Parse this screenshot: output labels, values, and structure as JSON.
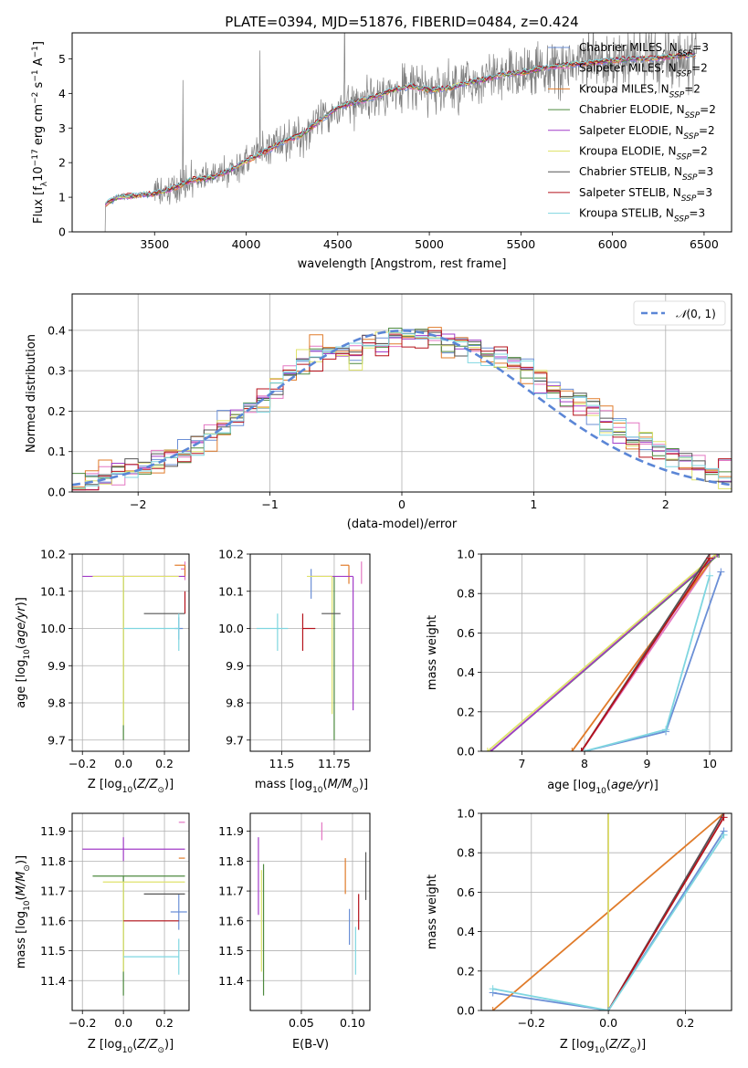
{
  "colors": {
    "Chabrier MILES": "#6b8fd6",
    "Salpeter MILES": "#e377c2",
    "Kroupa MILES": "#e07b2a",
    "Chabrier ELODIE": "#4d8a3f",
    "Salpeter ELODIE": "#a23cc8",
    "Kroupa ELODIE": "#dfe36b",
    "Chabrier STELIB": "#555555",
    "Salpeter STELIB": "#b5121b",
    "Kroupa STELIB": "#7fd6e0"
  },
  "chart_data": [
    {
      "id": "spectrum",
      "type": "line",
      "title": "PLATE=0394, MJD=51876, FIBERID=0484, z=0.424",
      "xlabel": "wavelength [Angstrom, rest frame]",
      "ylabel": "Flux [f_λ 10^-17 erg cm^-2 s^-1 A^-1]",
      "xlim": [
        3050,
        6650
      ],
      "ylim": [
        0,
        5.75
      ],
      "xticks": [
        3500,
        4000,
        4500,
        5000,
        5500,
        6000,
        6500
      ],
      "yticks": [
        0,
        1,
        2,
        3,
        4,
        5
      ],
      "grid": false,
      "legend_position": "top-right",
      "continuum": [
        [
          3230,
          0.0
        ],
        [
          3232,
          0.8
        ],
        [
          3300,
          1.0
        ],
        [
          3400,
          1.05
        ],
        [
          3500,
          1.1
        ],
        [
          3600,
          1.25
        ],
        [
          3700,
          1.5
        ],
        [
          3800,
          1.55
        ],
        [
          3900,
          1.75
        ],
        [
          4000,
          2.05
        ],
        [
          4100,
          2.3
        ],
        [
          4200,
          2.6
        ],
        [
          4300,
          2.8
        ],
        [
          4400,
          3.2
        ],
        [
          4500,
          3.6
        ],
        [
          4600,
          3.75
        ],
        [
          4700,
          3.9
        ],
        [
          4800,
          4.1
        ],
        [
          4900,
          4.2
        ],
        [
          5000,
          4.1
        ],
        [
          5100,
          4.15
        ],
        [
          5200,
          4.3
        ],
        [
          5300,
          4.4
        ],
        [
          5400,
          4.55
        ],
        [
          5500,
          4.6
        ],
        [
          5600,
          4.7
        ],
        [
          5700,
          4.8
        ],
        [
          5800,
          4.85
        ],
        [
          5900,
          4.9
        ],
        [
          6000,
          4.95
        ],
        [
          6100,
          5.0
        ],
        [
          6200,
          5.0
        ],
        [
          6300,
          5.05
        ],
        [
          6400,
          5.1
        ]
      ],
      "series": [
        {
          "name": "Chabrier MILES",
          "label": "Chabrier MILES, N_SSP=3"
        },
        {
          "name": "Salpeter MILES",
          "label": "Salpeter MILES, N_SSP=2"
        },
        {
          "name": "Kroupa MILES",
          "label": "Kroupa MILES, N_SSP=2"
        },
        {
          "name": "Chabrier ELODIE",
          "label": "Chabrier ELODIE, N_SSP=2"
        },
        {
          "name": "Salpeter ELODIE",
          "label": "Salpeter ELODIE, N_SSP=2"
        },
        {
          "name": "Kroupa ELODIE",
          "label": "Kroupa ELODIE, N_SSP=2"
        },
        {
          "name": "Chabrier STELIB",
          "label": "Chabrier STELIB, N_SSP=3"
        },
        {
          "name": "Salpeter STELIB",
          "label": "Salpeter STELIB, N_SSP=3"
        },
        {
          "name": "Kroupa STELIB",
          "label": "Kroupa STELIB, N_SSP=3"
        }
      ]
    },
    {
      "id": "residuals",
      "type": "line",
      "xlabel": "(data-model)/error",
      "ylabel": "Normed distribution",
      "xlim": [
        -2.5,
        2.5
      ],
      "ylim": [
        0,
        0.49
      ],
      "xticks": [
        -2,
        -1,
        0,
        1,
        2
      ],
      "yticks": [
        0.0,
        0.1,
        0.2,
        0.3,
        0.4
      ],
      "grid": true,
      "legend_position": "top-right",
      "legend": "N(0,1)",
      "bin_width": 0.1,
      "hist_center": [
        0.02,
        0.03,
        0.04,
        0.045,
        0.05,
        0.06,
        0.07,
        0.085,
        0.1,
        0.12,
        0.14,
        0.16,
        0.18,
        0.2,
        0.22,
        0.26,
        0.3,
        0.32,
        0.34,
        0.35,
        0.35,
        0.35,
        0.36,
        0.37,
        0.38,
        0.39,
        0.39,
        0.38,
        0.37,
        0.36,
        0.35,
        0.34,
        0.33,
        0.32,
        0.3,
        0.28,
        0.26,
        0.24,
        0.22,
        0.2,
        0.18,
        0.16,
        0.14,
        0.12,
        0.1,
        0.09,
        0.08,
        0.07,
        0.06,
        0.05
      ]
    },
    {
      "id": "age-Z",
      "type": "scatter",
      "xlabel": "Z [log10(Z/Z_sun)]",
      "ylabel": "age [log10(age/yr)]",
      "xlim": [
        -0.25,
        0.32
      ],
      "ylim": [
        9.67,
        10.2
      ],
      "xticks": [
        -0.2,
        0.0,
        0.2
      ],
      "yticks": [
        9.7,
        9.8,
        9.9,
        10.0,
        10.1,
        10.2
      ],
      "grid": true,
      "points": [
        {
          "name": "Chabrier MILES",
          "x": 0.27,
          "y": 10.0,
          "xerr": [
            0.02,
            0.02
          ],
          "yerr": [
            0.03,
            0.03
          ]
        },
        {
          "name": "Salpeter MILES",
          "x": 0.3,
          "y": 10.16,
          "xerr": [
            0.02,
            0.0
          ],
          "yerr": [
            0.03,
            0.02
          ]
        },
        {
          "name": "Kroupa MILES",
          "x": 0.3,
          "y": 10.17,
          "xerr": [
            0.05,
            0.0
          ],
          "yerr": [
            0.03,
            0.0
          ]
        },
        {
          "name": "Chabrier ELODIE",
          "x": 0.0,
          "y": 10.0,
          "xerr": [
            0.0,
            0.0
          ],
          "yerr": [
            0.3,
            0.14
          ]
        },
        {
          "name": "Salpeter ELODIE",
          "x": 0.0,
          "y": 10.14,
          "xerr": [
            0.2,
            0.3
          ],
          "yerr": [
            0.0,
            0.0
          ]
        },
        {
          "name": "Kroupa ELODIE",
          "x": 0.0,
          "y": 10.14,
          "xerr": [
            0.15,
            0.27
          ],
          "yerr": [
            0.4,
            0.0
          ]
        },
        {
          "name": "Chabrier STELIB",
          "x": 0.2,
          "y": 10.04,
          "xerr": [
            0.1,
            0.1
          ],
          "yerr": [
            0.0,
            0.0
          ]
        },
        {
          "name": "Salpeter STELIB",
          "x": 0.3,
          "y": 10.07,
          "xerr": [
            0.0,
            0.0
          ],
          "yerr": [
            0.03,
            0.03
          ]
        },
        {
          "name": "Kroupa STELIB",
          "x": 0.27,
          "y": 10.0,
          "xerr": [
            0.27,
            0.0
          ],
          "yerr": [
            0.06,
            0.04
          ]
        }
      ]
    },
    {
      "id": "age-mass",
      "type": "scatter",
      "xlabel": "mass [log10(M/M_sun)]",
      "ylabel": "",
      "xlim": [
        11.35,
        11.92
      ],
      "ylim": [
        9.67,
        10.2
      ],
      "xticks": [
        11.5,
        11.75
      ],
      "yticks": [
        9.7,
        9.8,
        9.9,
        10.0,
        10.1,
        10.2
      ],
      "grid": true,
      "points": [
        {
          "name": "Chabrier MILES",
          "x": 11.64,
          "y": 10.12,
          "xerr": [
            0.0,
            0.0
          ],
          "yerr": [
            0.04,
            0.04
          ]
        },
        {
          "name": "Salpeter MILES",
          "x": 11.88,
          "y": 10.15,
          "xerr": [
            0.0,
            0.0
          ],
          "yerr": [
            0.03,
            0.03
          ]
        },
        {
          "name": "Kroupa MILES",
          "x": 11.82,
          "y": 10.17,
          "xerr": [
            0.04,
            0.0
          ],
          "yerr": [
            0.05,
            0.0
          ]
        },
        {
          "name": "Chabrier ELODIE",
          "x": 11.75,
          "y": 10.0,
          "xerr": [
            0.0,
            0.0
          ],
          "yerr": [
            0.3,
            0.14
          ]
        },
        {
          "name": "Salpeter ELODIE",
          "x": 11.84,
          "y": 10.14,
          "xerr": [
            0.2,
            0.0
          ],
          "yerr": [
            0.36,
            0.0
          ]
        },
        {
          "name": "Kroupa ELODIE",
          "x": 11.74,
          "y": 10.14,
          "xerr": [
            0.12,
            0.0
          ],
          "yerr": [
            0.37,
            0.0
          ]
        },
        {
          "name": "Chabrier STELIB",
          "x": 11.73,
          "y": 10.04,
          "xerr": [
            0.04,
            0.05
          ],
          "yerr": [
            0.0,
            0.0
          ]
        },
        {
          "name": "Salpeter STELIB",
          "x": 11.6,
          "y": 10.0,
          "xerr": [
            0.0,
            0.06
          ],
          "yerr": [
            0.06,
            0.04
          ]
        },
        {
          "name": "Kroupa STELIB",
          "x": 11.48,
          "y": 10.0,
          "xerr": [
            0.1,
            0.05
          ],
          "yerr": [
            0.06,
            0.04
          ]
        }
      ]
    },
    {
      "id": "weight-age",
      "type": "line",
      "xlabel": "age [log10(age/yr)]",
      "ylabel": "mass weight",
      "xlim": [
        6.35,
        10.35
      ],
      "ylim": [
        0,
        1.0
      ],
      "xticks": [
        7,
        8,
        9,
        10
      ],
      "yticks": [
        0.0,
        0.2,
        0.4,
        0.6,
        0.8,
        1.0
      ],
      "grid": true,
      "series": [
        {
          "name": "Chabrier MILES",
          "x": [
            8.0,
            9.3,
            10.18
          ],
          "y": [
            0.0,
            0.1,
            0.91
          ]
        },
        {
          "name": "Salpeter MILES",
          "x": [
            7.95,
            10.1
          ],
          "y": [
            0.0,
            1.0
          ]
        },
        {
          "name": "Kroupa MILES",
          "x": [
            7.8,
            10.1
          ],
          "y": [
            0.0,
            1.0
          ]
        },
        {
          "name": "Chabrier ELODIE",
          "x": [
            6.5,
            10.15
          ],
          "y": [
            0.0,
            1.0
          ]
        },
        {
          "name": "Salpeter ELODIE",
          "x": [
            6.5,
            10.13
          ],
          "y": [
            0.0,
            1.0
          ]
        },
        {
          "name": "Kroupa ELODIE",
          "x": [
            6.45,
            10.1
          ],
          "y": [
            0.0,
            1.0
          ]
        },
        {
          "name": "Chabrier STELIB",
          "x": [
            7.95,
            10.0
          ],
          "y": [
            0.0,
            1.0
          ]
        },
        {
          "name": "Salpeter STELIB",
          "x": [
            7.95,
            10.0
          ],
          "y": [
            0.0,
            0.98
          ]
        },
        {
          "name": "Kroupa STELIB",
          "x": [
            8.0,
            9.3,
            10.0
          ],
          "y": [
            0.0,
            0.11,
            0.89
          ]
        }
      ]
    },
    {
      "id": "mass-Z",
      "type": "scatter",
      "xlabel": "Z [log10(Z/Z_sun)]",
      "ylabel": "mass [log10(M/M_sun)]",
      "xlim": [
        -0.25,
        0.32
      ],
      "ylim": [
        11.3,
        11.96
      ],
      "xticks": [
        -0.2,
        0.0,
        0.2
      ],
      "yticks": [
        11.4,
        11.5,
        11.6,
        11.7,
        11.8,
        11.9
      ],
      "grid": true,
      "points": [
        {
          "name": "Chabrier MILES",
          "x": 0.27,
          "y": 11.63,
          "xerr": [
            0.04,
            0.04
          ],
          "yerr": [
            0.06,
            0.06
          ]
        },
        {
          "name": "Salpeter MILES",
          "x": 0.3,
          "y": 11.93,
          "xerr": [
            0.03,
            0.0
          ],
          "yerr": [
            0.0,
            0.0
          ]
        },
        {
          "name": "Kroupa MILES",
          "x": 0.3,
          "y": 11.81,
          "xerr": [
            0.03,
            0.0
          ],
          "yerr": [
            0.0,
            0.0
          ]
        },
        {
          "name": "Chabrier ELODIE",
          "x": 0.0,
          "y": 11.75,
          "xerr": [
            0.15,
            0.3
          ],
          "yerr": [
            0.4,
            0.0
          ]
        },
        {
          "name": "Salpeter ELODIE",
          "x": 0.0,
          "y": 11.84,
          "xerr": [
            0.2,
            0.3
          ],
          "yerr": [
            0.04,
            0.04
          ]
        },
        {
          "name": "Kroupa ELODIE",
          "x": 0.0,
          "y": 11.73,
          "xerr": [
            0.1,
            0.3
          ],
          "yerr": [
            0.3,
            0.0
          ]
        },
        {
          "name": "Chabrier STELIB",
          "x": 0.2,
          "y": 11.69,
          "xerr": [
            0.1,
            0.1
          ],
          "yerr": [
            0.0,
            0.0
          ]
        },
        {
          "name": "Salpeter STELIB",
          "x": 0.0,
          "y": 11.6,
          "xerr": [
            0.0,
            0.27
          ],
          "yerr": [
            0.0,
            0.0
          ]
        },
        {
          "name": "Kroupa STELIB",
          "x": 0.27,
          "y": 11.48,
          "xerr": [
            0.27,
            0.0
          ],
          "yerr": [
            0.06,
            0.06
          ]
        }
      ]
    },
    {
      "id": "mass-EBV",
      "type": "scatter",
      "xlabel": "E(B-V)",
      "ylabel": "",
      "xlim": [
        0.0,
        0.117
      ],
      "ylim": [
        11.3,
        11.96
      ],
      "xticks": [
        0.05,
        0.1
      ],
      "yticks": [
        11.4,
        11.5,
        11.6,
        11.7,
        11.8,
        11.9
      ],
      "grid": true,
      "points": [
        {
          "name": "Chabrier MILES",
          "x": 0.097,
          "y": 11.58,
          "xerr": [
            0.0,
            0.0
          ],
          "yerr": [
            0.06,
            0.06
          ]
        },
        {
          "name": "Salpeter MILES",
          "x": 0.07,
          "y": 11.9,
          "xerr": [
            0.0,
            0.0
          ],
          "yerr": [
            0.03,
            0.03
          ]
        },
        {
          "name": "Kroupa MILES",
          "x": 0.093,
          "y": 11.75,
          "xerr": [
            0.0,
            0.0
          ],
          "yerr": [
            0.06,
            0.06
          ]
        },
        {
          "name": "Chabrier ELODIE",
          "x": 0.013,
          "y": 11.57,
          "xerr": [
            0.0,
            0.0
          ],
          "yerr": [
            0.22,
            0.22
          ]
        },
        {
          "name": "Salpeter ELODIE",
          "x": 0.008,
          "y": 11.75,
          "xerr": [
            0.0,
            0.0
          ],
          "yerr": [
            0.13,
            0.13
          ]
        },
        {
          "name": "Kroupa ELODIE",
          "x": 0.011,
          "y": 11.6,
          "xerr": [
            0.0,
            0.0
          ],
          "yerr": [
            0.17,
            0.17
          ]
        },
        {
          "name": "Chabrier STELIB",
          "x": 0.113,
          "y": 11.75,
          "xerr": [
            0.0,
            0.0
          ],
          "yerr": [
            0.08,
            0.08
          ]
        },
        {
          "name": "Salpeter STELIB",
          "x": 0.106,
          "y": 11.63,
          "xerr": [
            0.0,
            0.0
          ],
          "yerr": [
            0.06,
            0.06
          ]
        },
        {
          "name": "Kroupa STELIB",
          "x": 0.103,
          "y": 11.5,
          "xerr": [
            0.0,
            0.0
          ],
          "yerr": [
            0.08,
            0.08
          ]
        }
      ]
    },
    {
      "id": "weight-Z",
      "type": "line",
      "xlabel": "Z [log10(Z/Z_sun)]",
      "ylabel": "mass weight",
      "xlim": [
        -0.33,
        0.32
      ],
      "ylim": [
        0,
        1.0
      ],
      "xticks": [
        -0.2,
        0.0,
        0.2
      ],
      "yticks": [
        0.0,
        0.2,
        0.4,
        0.6,
        0.8,
        1.0
      ],
      "grid": true,
      "series": [
        {
          "name": "Chabrier MILES",
          "x": [
            -0.3,
            0.0,
            0.3
          ],
          "y": [
            0.09,
            0.0,
            0.91
          ]
        },
        {
          "name": "Salpeter MILES",
          "x": [
            0.0,
            0.3
          ],
          "y": [
            0.0,
            1.0
          ]
        },
        {
          "name": "Kroupa MILES",
          "x": [
            -0.3,
            0.3
          ],
          "y": [
            0.0,
            1.0
          ]
        },
        {
          "name": "Chabrier ELODIE",
          "x": [
            0.0,
            0.0
          ],
          "y": [
            0.0,
            1.0
          ]
        },
        {
          "name": "Salpeter ELODIE",
          "x": [
            0.0,
            0.0
          ],
          "y": [
            0.0,
            1.0
          ]
        },
        {
          "name": "Kroupa ELODIE",
          "x": [
            0.0,
            0.0
          ],
          "y": [
            0.0,
            1.0
          ]
        },
        {
          "name": "Chabrier STELIB",
          "x": [
            0.0,
            0.3
          ],
          "y": [
            0.0,
            1.0
          ]
        },
        {
          "name": "Salpeter STELIB",
          "x": [
            0.0,
            0.3
          ],
          "y": [
            0.0,
            0.98
          ]
        },
        {
          "name": "Kroupa STELIB",
          "x": [
            -0.3,
            0.0,
            0.3
          ],
          "y": [
            0.11,
            0.0,
            0.89
          ]
        }
      ]
    }
  ]
}
